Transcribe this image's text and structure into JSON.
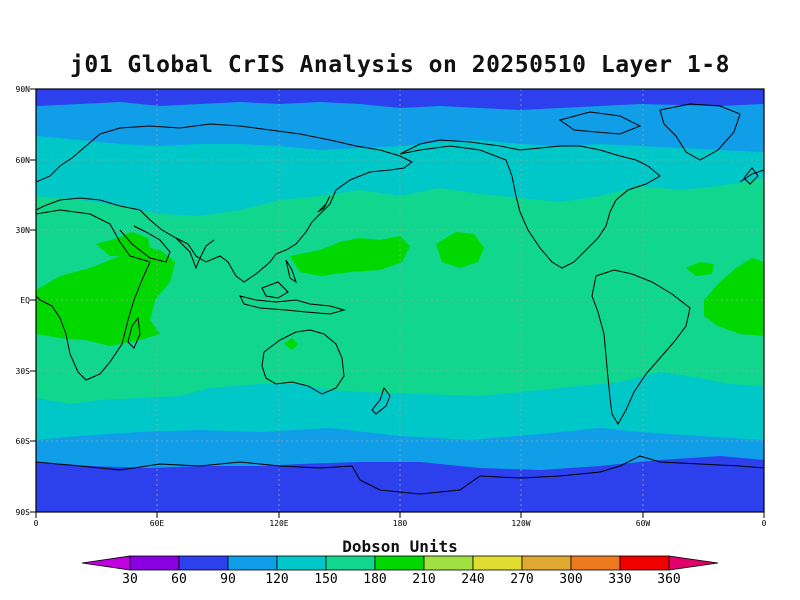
{
  "title": "j01 Global CrIS Analysis on 20250510 Layer 1-8",
  "colorbar": {
    "title": "Dobson Units",
    "labels": [
      "30",
      "60",
      "90",
      "120",
      "150",
      "180",
      "210",
      "240",
      "270",
      "300",
      "330",
      "360"
    ],
    "colors": [
      "#c000e0",
      "#8a00e0",
      "#2c40ee",
      "#109ee8",
      "#00c8c8",
      "#10d68e",
      "#00d800",
      "#a0e040",
      "#e0dc30",
      "#e0a830",
      "#ee7a20",
      "#f00000",
      "#e0006a"
    ]
  },
  "axes": {
    "lat_labels": [
      "90N",
      "60N",
      "30N",
      "EQ",
      "30S",
      "60S",
      "90S"
    ],
    "lon_labels": [
      "0",
      "60E",
      "120E",
      "180",
      "120W",
      "60W",
      "0"
    ]
  }
}
